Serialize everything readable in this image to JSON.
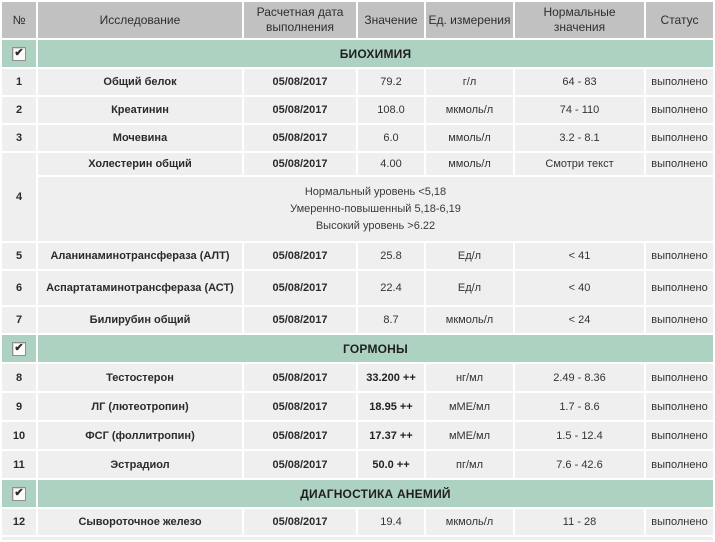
{
  "colors": {
    "header_bg": "#c1c1c1",
    "row_bg": "#efefef",
    "section_bg": "#aed2c1",
    "gridline": "#ffffff",
    "text": "#333333"
  },
  "headers": [
    "№",
    "Исследование",
    "Расчетная дата выполнения",
    "Значение",
    "Ед. измерения",
    "Нормальные значения",
    "Статус"
  ],
  "sections": [
    {
      "title": "БИОХИМИЯ",
      "checked": true
    },
    {
      "title": "ГОРМОНЫ",
      "checked": true
    },
    {
      "title": "ДИАГНОСТИКА АНЕМИЙ",
      "checked": true
    }
  ],
  "note": {
    "lines": [
      "Нормальный уровень <5,18",
      "Умеренно-повышенный 5,18-6,19",
      "Высокий уровень >6.22"
    ]
  },
  "rows": [
    {
      "num": "1",
      "name": "Общий белок",
      "date": "05/08/2017",
      "value": "79.2",
      "unit": "г/л",
      "normal": "64 - 83",
      "status": "выполнено"
    },
    {
      "num": "2",
      "name": "Креатинин",
      "date": "05/08/2017",
      "value": "108.0",
      "unit": "мкмоль/л",
      "normal": "74 - 110",
      "status": "выполнено"
    },
    {
      "num": "3",
      "name": "Мочевина",
      "date": "05/08/2017",
      "value": "6.0",
      "unit": "ммоль/л",
      "normal": "3.2 - 8.1",
      "status": "выполнено"
    },
    {
      "num": "4",
      "name": "Холестерин общий",
      "date": "05/08/2017",
      "value": "4.00",
      "unit": "ммоль/л",
      "normal": "Смотри текст",
      "status": "выполнено"
    },
    {
      "num": "5",
      "name": "Аланинаминотрансфераза (АЛТ)",
      "date": "05/08/2017",
      "value": "25.8",
      "unit": "Ед/л",
      "normal": "< 41",
      "status": "выполнено"
    },
    {
      "num": "6",
      "name": "Аспартатаминотрансфераза (АСТ)",
      "date": "05/08/2017",
      "value": "22.4",
      "unit": "Ед/л",
      "normal": "< 40",
      "status": "выполнено"
    },
    {
      "num": "7",
      "name": "Билирубин общий",
      "date": "05/08/2017",
      "value": "8.7",
      "unit": "мкмоль/л",
      "normal": "< 24",
      "status": "выполнено"
    },
    {
      "num": "8",
      "name": "Тестостерон",
      "date": "05/08/2017",
      "value": "33.200 ++",
      "unit": "нг/мл",
      "normal": "2.49 - 8.36",
      "status": "выполнено"
    },
    {
      "num": "9",
      "name": "ЛГ (лютеотропин)",
      "date": "05/08/2017",
      "value": "18.95 ++",
      "unit": "мМЕ/мл",
      "normal": "1.7 - 8.6",
      "status": "выполнено"
    },
    {
      "num": "10",
      "name": "ФСГ (фоллитропин)",
      "date": "05/08/2017",
      "value": "17.37 ++",
      "unit": "мМЕ/мл",
      "normal": "1.5 - 12.4",
      "status": "выполнено"
    },
    {
      "num": "11",
      "name": "Эстрадиол",
      "date": "05/08/2017",
      "value": "50.0 ++",
      "unit": "пг/мл",
      "normal": "7.6 - 42.6",
      "status": "выполнено"
    },
    {
      "num": "12",
      "name": "Сывороточное железо",
      "date": "05/08/2017",
      "value": "19.4",
      "unit": "мкмоль/л",
      "normal": "11 - 28",
      "status": "выполнено"
    }
  ]
}
